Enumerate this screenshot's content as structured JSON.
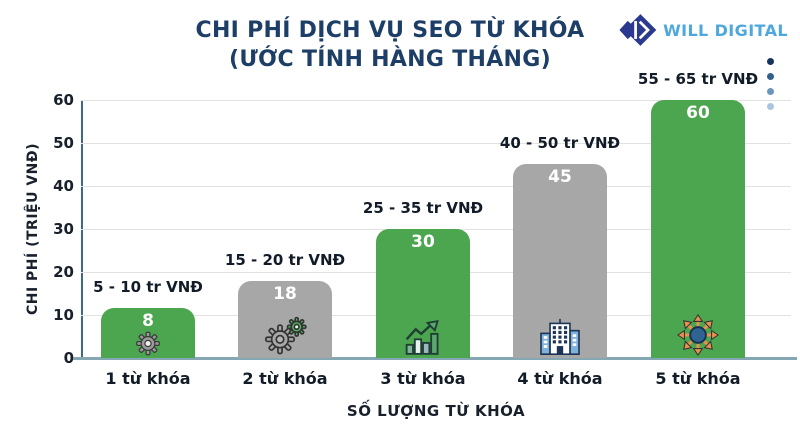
{
  "header": {
    "title_line1": "CHI PHÍ DỊCH VỤ SEO TỪ KHÓA",
    "title_line2": "(ƯỚC TÍNH HÀNG THÁNG)",
    "brand": "WILL DIGITAL"
  },
  "theme": {
    "title_color": "#1D3E66",
    "brand_color": "#4FA8DC",
    "logo_color": "#2B3A90",
    "green_bar": "#4BA64F",
    "gray_bar": "#A7A7A7",
    "dot_colors": [
      "#14355C",
      "#33618E",
      "#6B94BD",
      "#A9C6E0"
    ]
  },
  "chart_data": {
    "type": "bar",
    "title": "CHI PHÍ DỊCH VỤ SEO TỪ KHÓA (ƯỚC TÍNH HÀNG THÁNG)",
    "xlabel": "SỐ LƯỢNG TỪ KHÓA",
    "ylabel": "CHI PHÍ (TRIỆU VNĐ)",
    "ylim": [
      0,
      60
    ],
    "yticks": [
      60,
      50,
      40,
      30,
      20,
      10,
      0
    ],
    "grid": true,
    "legend": "none",
    "categories": [
      "1 từ khóa",
      "2 từ khóa",
      "3 từ khóa",
      "4 từ khóa",
      "5 từ khóa"
    ],
    "values": [
      8,
      18,
      30,
      45,
      60
    ],
    "bars": [
      {
        "category": "1 từ khóa",
        "value": 8,
        "range": "5 - 10 tr VNĐ",
        "color": "#4BA64F",
        "icon": "gear"
      },
      {
        "category": "2 từ khóa",
        "value": 18,
        "range": "15 - 20 tr VNĐ",
        "color": "#A7A7A7",
        "icon": "gears"
      },
      {
        "category": "3 từ khóa",
        "value": 30,
        "range": "25 - 35 tr VNĐ",
        "color": "#4BA64F",
        "icon": "growth-chart"
      },
      {
        "category": "4 từ khóa",
        "value": 45,
        "range": "40 - 50 tr VNĐ",
        "color": "#A7A7A7",
        "icon": "building"
      },
      {
        "category": "5 từ khóa",
        "value": 60,
        "range": "55 - 65 tr VNĐ",
        "color": "#4BA64F",
        "icon": "expand-arrows"
      }
    ]
  }
}
